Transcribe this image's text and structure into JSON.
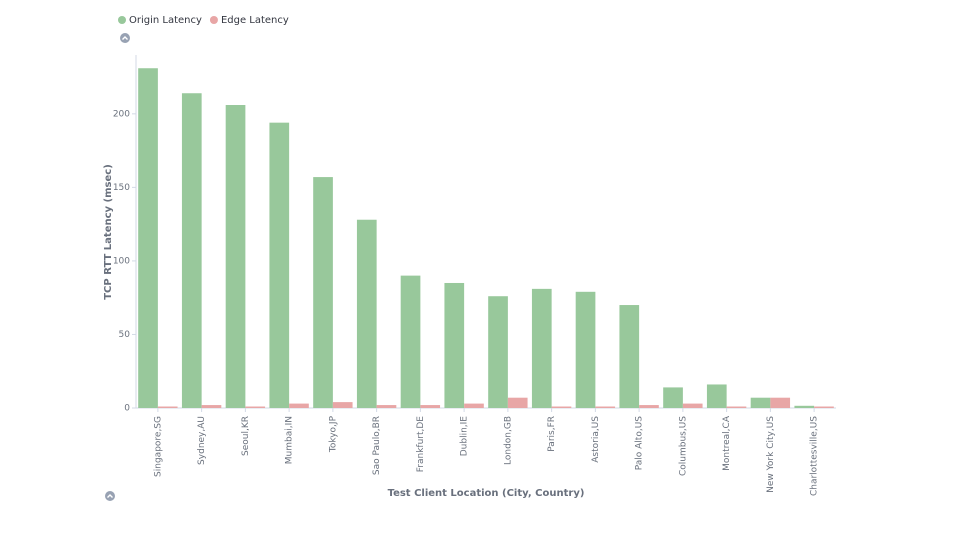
{
  "chart_data": {
    "type": "bar",
    "x_label": "Test Client Location (City, Country)",
    "y_label": "TCP RTT Latency (msec)",
    "categories": [
      "Singapore,SG",
      "Sydney,AU",
      "Seoul,KR",
      "Mumbai,IN",
      "Tokyo,JP",
      "Sao Paulo,BR",
      "Frankfurt,DE",
      "Dublin,IE",
      "London,GB",
      "Paris,FR",
      "Astoria,US",
      "Palo Alto,US",
      "Columbus,US",
      "Montreal,CA",
      "New York City,US",
      "Charlottesville,US"
    ],
    "series": [
      {
        "name": "Origin Latency",
        "color": "#98c89b",
        "values": [
          231,
          214,
          206,
          194,
          157,
          128,
          90,
          85,
          76,
          81,
          79,
          70,
          14,
          16,
          7,
          1.5
        ]
      },
      {
        "name": "Edge Latency",
        "color": "#e8a6a6",
        "values": [
          1,
          2,
          1,
          3,
          4,
          2,
          2,
          3,
          7,
          1,
          1,
          2,
          3,
          1,
          7,
          1
        ]
      }
    ],
    "ylim": [
      0,
      240
    ],
    "yticks": [
      0,
      50,
      100,
      150,
      200
    ],
    "grid": false
  }
}
